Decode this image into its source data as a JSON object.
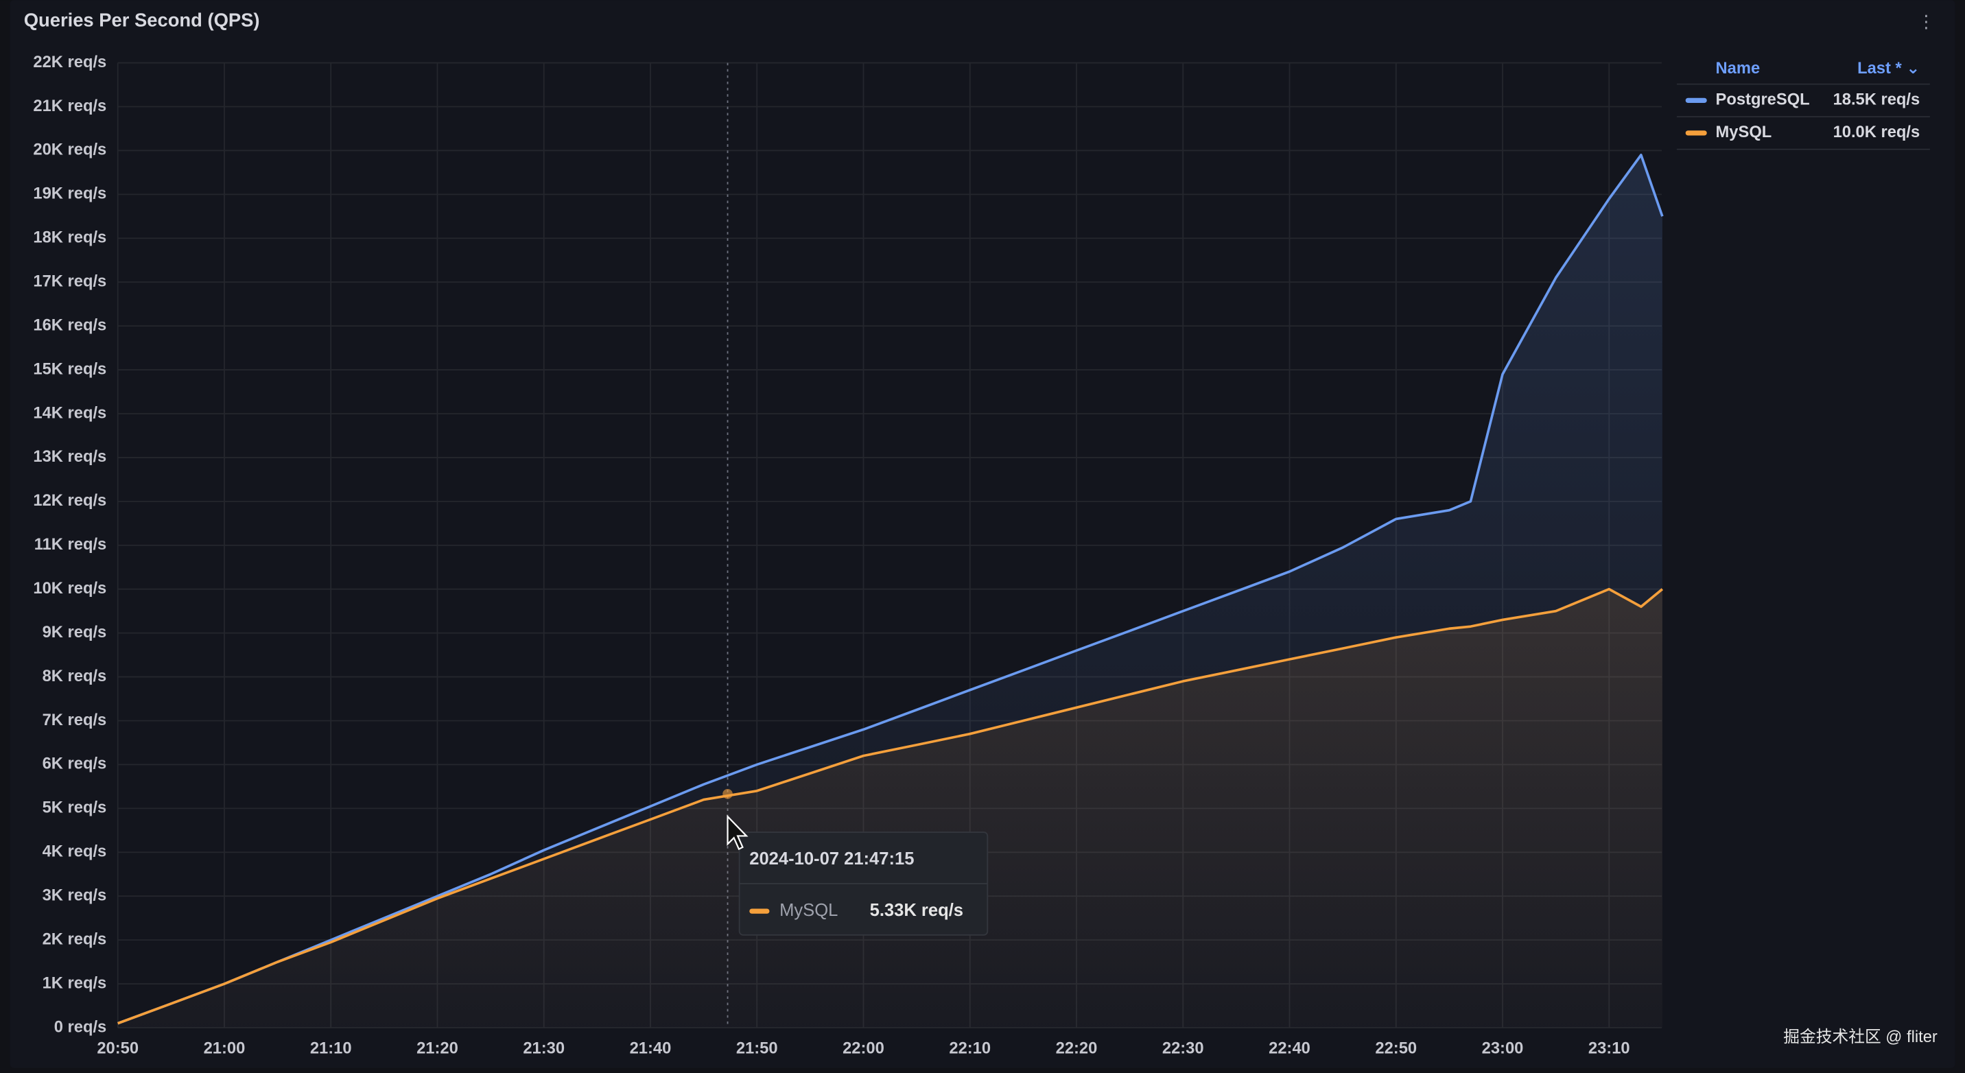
{
  "chart_data": {
    "type": "line",
    "title": "Queries Per Second (QPS)",
    "x": [
      "20:50",
      "20:55",
      "21:00",
      "21:05",
      "21:10",
      "21:15",
      "21:20",
      "21:25",
      "21:30",
      "21:35",
      "21:40",
      "21:45",
      "21:50",
      "21:55",
      "22:00",
      "22:05",
      "22:10",
      "22:15",
      "22:20",
      "22:25",
      "22:30",
      "22:35",
      "22:40",
      "22:45",
      "22:50",
      "22:55",
      "22:57",
      "23:00",
      "23:05",
      "23:10",
      "23:13",
      "23:15"
    ],
    "series": [
      {
        "name": "PostgreSQL",
        "color": "#6b9bf0",
        "last_label": "18.5K req/s",
        "values": [
          100,
          550,
          1000,
          1500,
          2000,
          2500,
          3000,
          3500,
          4050,
          4550,
          5050,
          5550,
          6000,
          6400,
          6800,
          7250,
          7700,
          8150,
          8600,
          9050,
          9500,
          9950,
          10400,
          10950,
          11600,
          11800,
          12000,
          14900,
          17100,
          18900,
          19900,
          18500
        ]
      },
      {
        "name": "MySQL",
        "color": "#f5a03c",
        "last_label": "10.0K req/s",
        "values": [
          100,
          550,
          1000,
          1500,
          1950,
          2450,
          2950,
          3400,
          3850,
          4300,
          4750,
          5200,
          5400,
          5800,
          6200,
          6450,
          6700,
          7000,
          7300,
          7600,
          7900,
          8150,
          8400,
          8650,
          8900,
          9100,
          9150,
          9300,
          9500,
          10000,
          9600,
          10000
        ]
      }
    ],
    "xlim": [
      "20:50",
      "23:15"
    ],
    "xticks": [
      "20:50",
      "21:00",
      "21:10",
      "21:20",
      "21:30",
      "21:40",
      "21:50",
      "22:00",
      "22:10",
      "22:20",
      "22:30",
      "22:40",
      "22:50",
      "23:00",
      "23:10"
    ],
    "ylim": [
      0,
      22000
    ],
    "yticks": [
      {
        "value": 0,
        "label": "0 req/s"
      },
      {
        "value": 1000,
        "label": "1K req/s"
      },
      {
        "value": 2000,
        "label": "2K req/s"
      },
      {
        "value": 3000,
        "label": "3K req/s"
      },
      {
        "value": 4000,
        "label": "4K req/s"
      },
      {
        "value": 5000,
        "label": "5K req/s"
      },
      {
        "value": 6000,
        "label": "6K req/s"
      },
      {
        "value": 7000,
        "label": "7K req/s"
      },
      {
        "value": 8000,
        "label": "8K req/s"
      },
      {
        "value": 9000,
        "label": "9K req/s"
      },
      {
        "value": 10000,
        "label": "10K req/s"
      },
      {
        "value": 11000,
        "label": "11K req/s"
      },
      {
        "value": 12000,
        "label": "12K req/s"
      },
      {
        "value": 13000,
        "label": "13K req/s"
      },
      {
        "value": 14000,
        "label": "14K req/s"
      },
      {
        "value": 15000,
        "label": "15K req/s"
      },
      {
        "value": 16000,
        "label": "16K req/s"
      },
      {
        "value": 17000,
        "label": "17K req/s"
      },
      {
        "value": 18000,
        "label": "18K req/s"
      },
      {
        "value": 19000,
        "label": "19K req/s"
      },
      {
        "value": 20000,
        "label": "20K req/s"
      },
      {
        "value": 21000,
        "label": "21K req/s"
      },
      {
        "value": 22000,
        "label": "22K req/s"
      }
    ],
    "grid": true,
    "legend": {
      "position": "right",
      "header_name": "Name",
      "header_value": "Last * ⌄"
    },
    "tooltip": {
      "time": "2024-10-07 21:47:15",
      "series_index": 1,
      "value": 5330,
      "value_label": "5.33K req/s"
    },
    "watermark": "掘金技术社区 @ fliter"
  }
}
